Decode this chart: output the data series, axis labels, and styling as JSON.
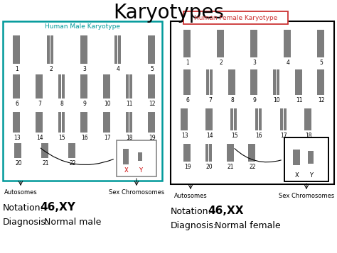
{
  "title": "Karyotypes",
  "title_fontsize": 20,
  "bg_color": "#ffffff",
  "male_box_color": "#00999a",
  "male_title": "Human Male Karyotype",
  "male_title_color": "#00999a",
  "female_box_color": "#cc3333",
  "female_title": "Human Female Karyotype",
  "female_title_color": "#cc3333",
  "male_notation_label": "Notation:",
  "male_notation_value": "46,XY",
  "male_diagnosis_label": "Diagnosis:",
  "male_diagnosis_value": "Normal male",
  "female_notation_label": "Notation:",
  "female_notation_value": "46,XX",
  "female_diagnosis_label": "Diagnosis:",
  "female_diagnosis_value": "Normal female",
  "autosomes_label": "Autosomes",
  "sexchrom_label": "Sex Chromosomes",
  "male_chrom_rows": [
    {
      "nums": [
        "1",
        "2",
        "3",
        "4",
        "5"
      ],
      "sizes": [
        1.0,
        0.9,
        0.82,
        0.75,
        0.68
      ]
    },
    {
      "nums": [
        "6",
        "7",
        "8",
        "9",
        "10",
        "11",
        "12"
      ],
      "sizes": [
        0.6,
        0.55,
        0.52,
        0.5,
        0.48,
        0.46,
        0.44
      ]
    },
    {
      "nums": [
        "13",
        "14",
        "15",
        "16",
        "17",
        "18",
        "19"
      ],
      "sizes": [
        0.38,
        0.36,
        0.34,
        0.3,
        0.28,
        0.26,
        0.22
      ]
    },
    {
      "nums": [
        "20",
        "21",
        "22"
      ],
      "sizes": [
        0.2,
        0.16,
        0.14
      ]
    }
  ],
  "female_chrom_rows": [
    {
      "nums": [
        "1",
        "2",
        "3",
        "4",
        "5"
      ],
      "sizes": [
        1.0,
        0.9,
        0.82,
        0.75,
        0.68
      ]
    },
    {
      "nums": [
        "6",
        "7",
        "8",
        "9",
        "10",
        "11",
        "12"
      ],
      "sizes": [
        0.6,
        0.55,
        0.52,
        0.5,
        0.48,
        0.46,
        0.44
      ]
    },
    {
      "nums": [
        "13",
        "14",
        "15",
        "16",
        "17",
        "18"
      ],
      "sizes": [
        0.38,
        0.36,
        0.34,
        0.3,
        0.28,
        0.26
      ]
    },
    {
      "nums": [
        "19",
        "20",
        "21",
        "22"
      ],
      "sizes": [
        0.22,
        0.2,
        0.16,
        0.14
      ]
    }
  ],
  "chrom_color": "#666666",
  "xy_red": "#cc0000",
  "label_fontsize": 6,
  "notation_fontsize": 9,
  "notation_bold_fontsize": 11,
  "chrom_num_fontsize": 5.5
}
